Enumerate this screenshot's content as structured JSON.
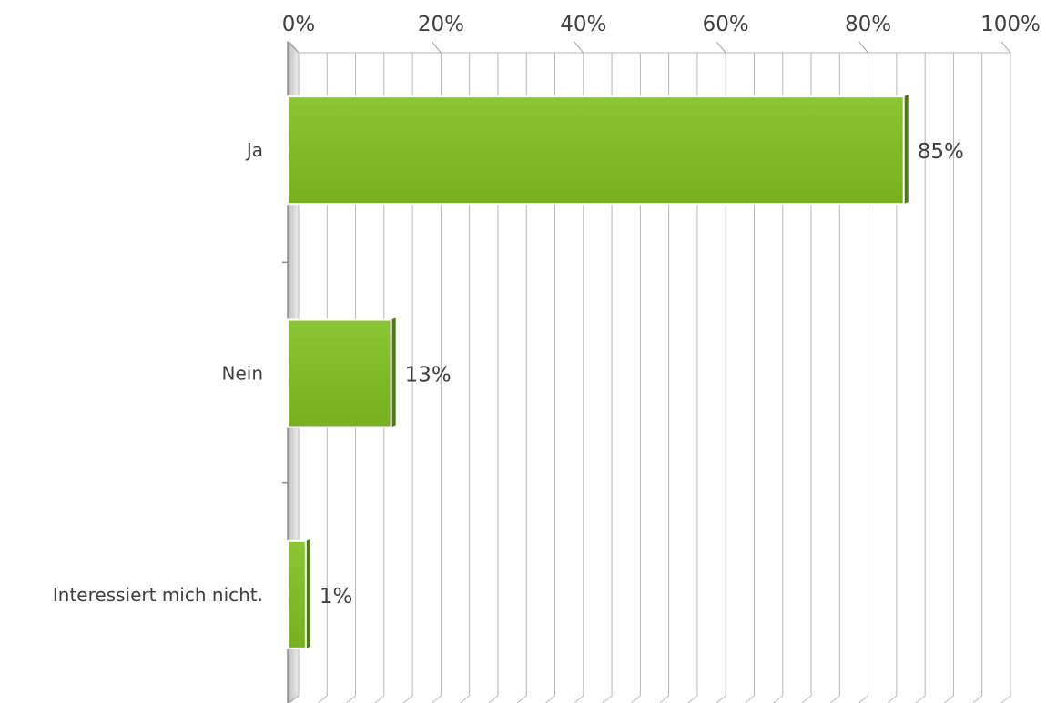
{
  "chart_data": {
    "type": "bar",
    "orientation": "horizontal",
    "categories": [
      "Ja",
      "Nein",
      "Interessiert mich nicht."
    ],
    "values": [
      85,
      13,
      1
    ],
    "value_labels": [
      "85%",
      "13%",
      "1%"
    ],
    "x_ticks": [
      "0%",
      "20%",
      "40%",
      "60%",
      "80%",
      "100%"
    ],
    "xlim": [
      0,
      100
    ],
    "x_axis_position": "top",
    "grid": true,
    "gridline_step": 4,
    "legend": "none",
    "bar_color": "#82BD2A",
    "title": "",
    "xlabel": "",
    "ylabel": ""
  }
}
